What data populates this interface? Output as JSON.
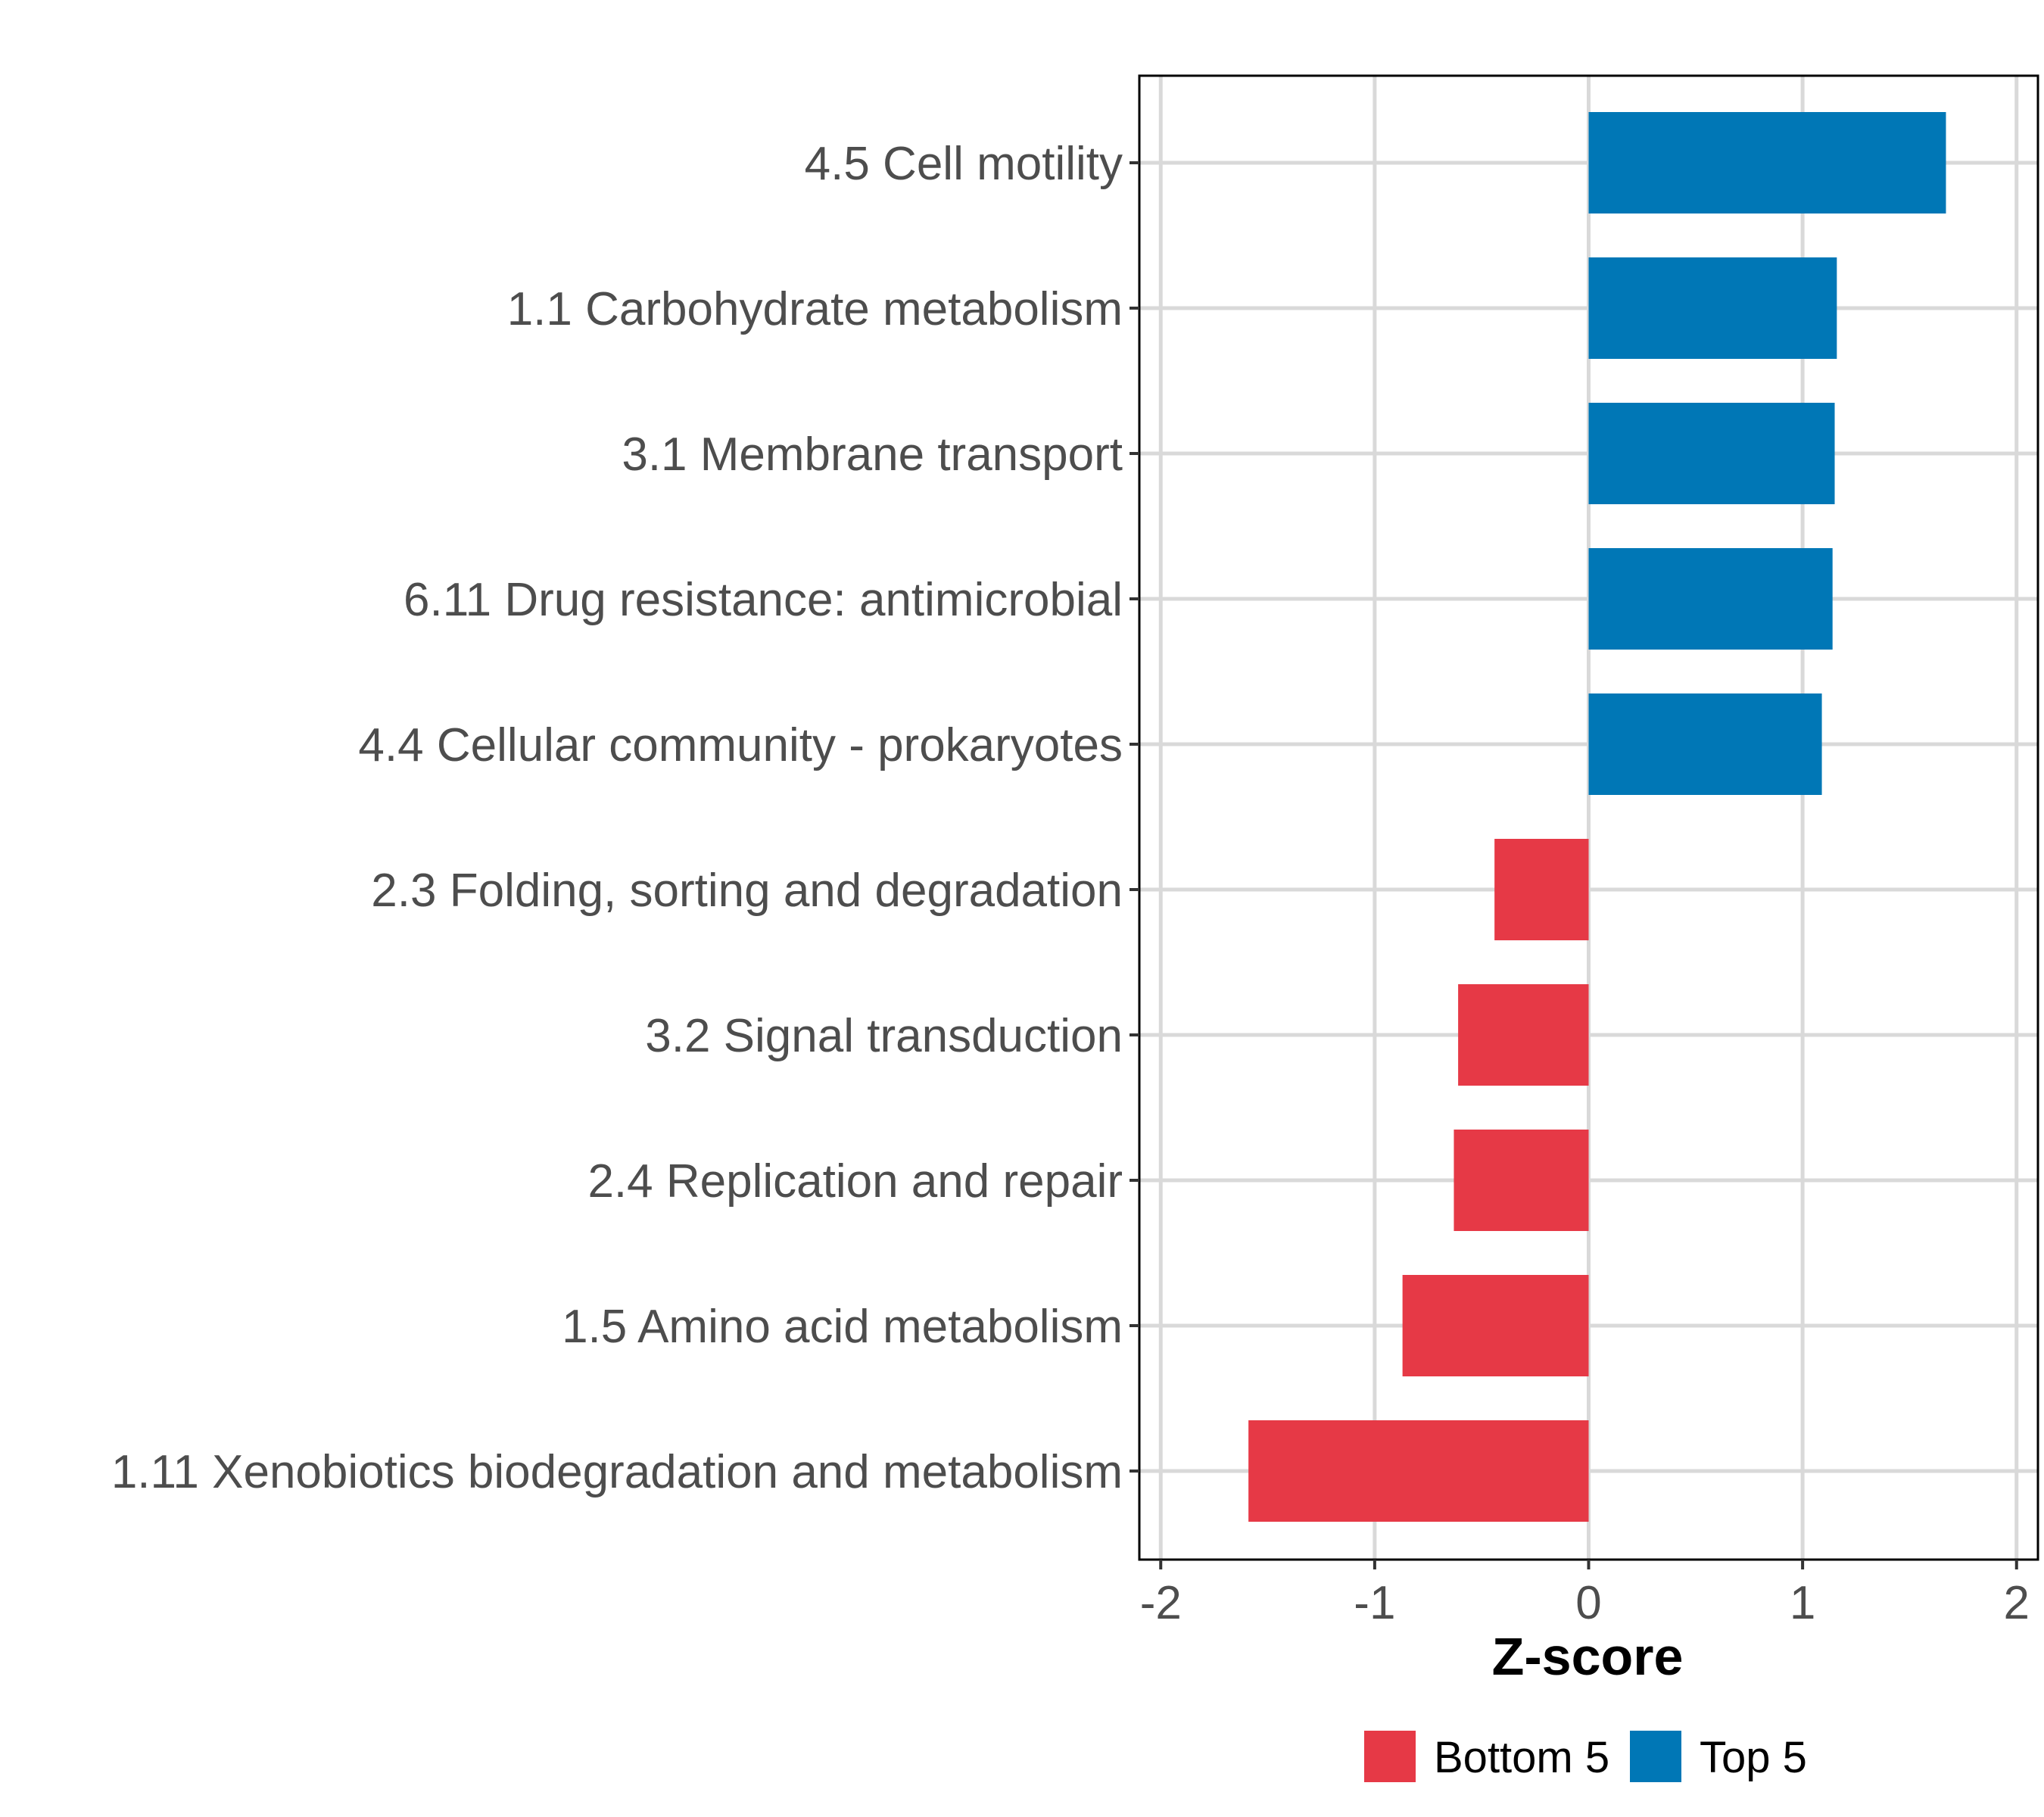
{
  "chart_data": {
    "type": "bar",
    "orientation": "horizontal",
    "title": "",
    "xlabel": "Z-score",
    "ylabel": "",
    "xlim": [
      -2.1,
      2.1
    ],
    "xticks": [
      -2,
      -1,
      0,
      1,
      2
    ],
    "xtick_labels": [
      "-2",
      "-1",
      "0",
      "1",
      "2"
    ],
    "grid": true,
    "legend_position": "bottom",
    "categories": [
      "4.5 Cell motility",
      "1.1 Carbohydrate metabolism",
      "3.1 Membrane transport",
      "6.11 Drug resistance: antimicrobial",
      "4.4 Cellular community - prokaryotes",
      "2.3 Folding, sorting and degradation",
      "3.2 Signal transduction",
      "2.4 Replication and repair",
      "1.5 Amino acid metabolism",
      "1.11 Xenobiotics biodegradation and metabolism"
    ],
    "values": [
      1.67,
      1.16,
      1.15,
      1.14,
      1.09,
      -0.44,
      -0.61,
      -0.63,
      -0.87,
      -1.59
    ],
    "groups": [
      "Top 5",
      "Top 5",
      "Top 5",
      "Top 5",
      "Top 5",
      "Bottom 5",
      "Bottom 5",
      "Bottom 5",
      "Bottom 5",
      "Bottom 5"
    ],
    "legend": [
      {
        "name": "Bottom 5",
        "color": "#e63946"
      },
      {
        "name": "Top 5",
        "color": "#0077b6"
      }
    ]
  }
}
